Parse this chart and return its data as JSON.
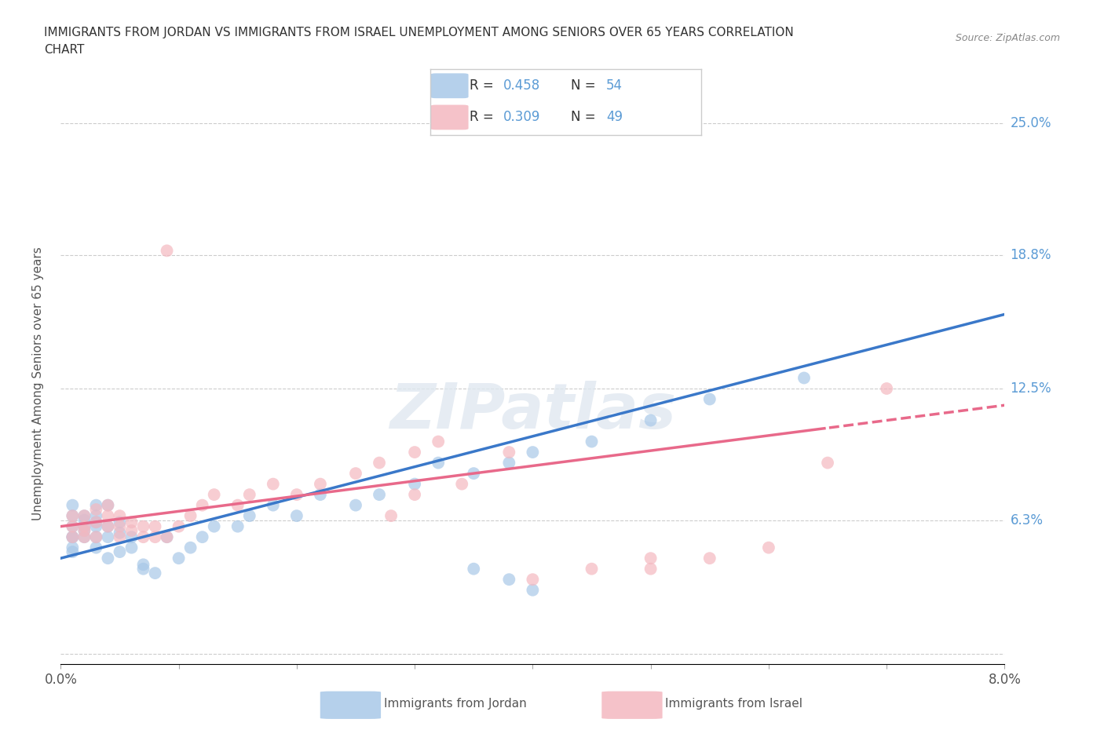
{
  "title_line1": "IMMIGRANTS FROM JORDAN VS IMMIGRANTS FROM ISRAEL UNEMPLOYMENT AMONG SENIORS OVER 65 YEARS CORRELATION",
  "title_line2": "CHART",
  "source_text": "Source: ZipAtlas.com",
  "ylabel": "Unemployment Among Seniors over 65 years",
  "xlim": [
    0.0,
    0.08
  ],
  "ylim": [
    -0.005,
    0.26
  ],
  "ytick_positions": [
    0.0,
    0.063,
    0.125,
    0.188,
    0.25
  ],
  "ytick_labels": [
    "",
    "6.3%",
    "12.5%",
    "18.8%",
    "25.0%"
  ],
  "jordan_R": 0.458,
  "jordan_N": 54,
  "israel_R": 0.309,
  "israel_N": 49,
  "jordan_color": "#a8c8e8",
  "israel_color": "#f4b8c0",
  "jordan_line_color": "#3a78c9",
  "israel_line_color": "#e8698a",
  "background_color": "#ffffff",
  "grid_color": "#cccccc",
  "watermark_text": "ZIPatlas",
  "legend_text_color": "#5B9BD5",
  "jordan_x": [
    0.001,
    0.001,
    0.001,
    0.001,
    0.001,
    0.001,
    0.001,
    0.002,
    0.002,
    0.002,
    0.002,
    0.002,
    0.003,
    0.003,
    0.003,
    0.003,
    0.003,
    0.003,
    0.004,
    0.004,
    0.004,
    0.004,
    0.005,
    0.005,
    0.005,
    0.006,
    0.006,
    0.007,
    0.007,
    0.008,
    0.009,
    0.01,
    0.011,
    0.012,
    0.013,
    0.015,
    0.016,
    0.018,
    0.02,
    0.022,
    0.025,
    0.027,
    0.03,
    0.032,
    0.035,
    0.038,
    0.04,
    0.045,
    0.05,
    0.055,
    0.063,
    0.035,
    0.038,
    0.04
  ],
  "jordan_y": [
    0.055,
    0.06,
    0.065,
    0.07,
    0.055,
    0.048,
    0.05,
    0.058,
    0.06,
    0.063,
    0.055,
    0.065,
    0.05,
    0.055,
    0.06,
    0.062,
    0.065,
    0.07,
    0.045,
    0.055,
    0.06,
    0.07,
    0.048,
    0.057,
    0.062,
    0.05,
    0.055,
    0.04,
    0.042,
    0.038,
    0.055,
    0.045,
    0.05,
    0.055,
    0.06,
    0.06,
    0.065,
    0.07,
    0.065,
    0.075,
    0.07,
    0.075,
    0.08,
    0.09,
    0.085,
    0.09,
    0.095,
    0.1,
    0.11,
    0.12,
    0.13,
    0.04,
    0.035,
    0.03
  ],
  "israel_x": [
    0.001,
    0.001,
    0.001,
    0.002,
    0.002,
    0.002,
    0.002,
    0.003,
    0.003,
    0.003,
    0.004,
    0.004,
    0.004,
    0.005,
    0.005,
    0.005,
    0.006,
    0.006,
    0.007,
    0.007,
    0.008,
    0.008,
    0.009,
    0.009,
    0.01,
    0.011,
    0.012,
    0.013,
    0.015,
    0.016,
    0.018,
    0.02,
    0.022,
    0.025,
    0.027,
    0.03,
    0.032,
    0.034,
    0.028,
    0.04,
    0.045,
    0.05,
    0.055,
    0.06,
    0.065,
    0.07,
    0.03,
    0.038,
    0.05
  ],
  "israel_y": [
    0.06,
    0.065,
    0.055,
    0.055,
    0.06,
    0.065,
    0.058,
    0.062,
    0.068,
    0.055,
    0.06,
    0.065,
    0.07,
    0.055,
    0.06,
    0.065,
    0.058,
    0.062,
    0.055,
    0.06,
    0.055,
    0.06,
    0.055,
    0.19,
    0.06,
    0.065,
    0.07,
    0.075,
    0.07,
    0.075,
    0.08,
    0.075,
    0.08,
    0.085,
    0.09,
    0.095,
    0.1,
    0.08,
    0.065,
    0.035,
    0.04,
    0.045,
    0.045,
    0.05,
    0.09,
    0.125,
    0.075,
    0.095,
    0.04
  ]
}
